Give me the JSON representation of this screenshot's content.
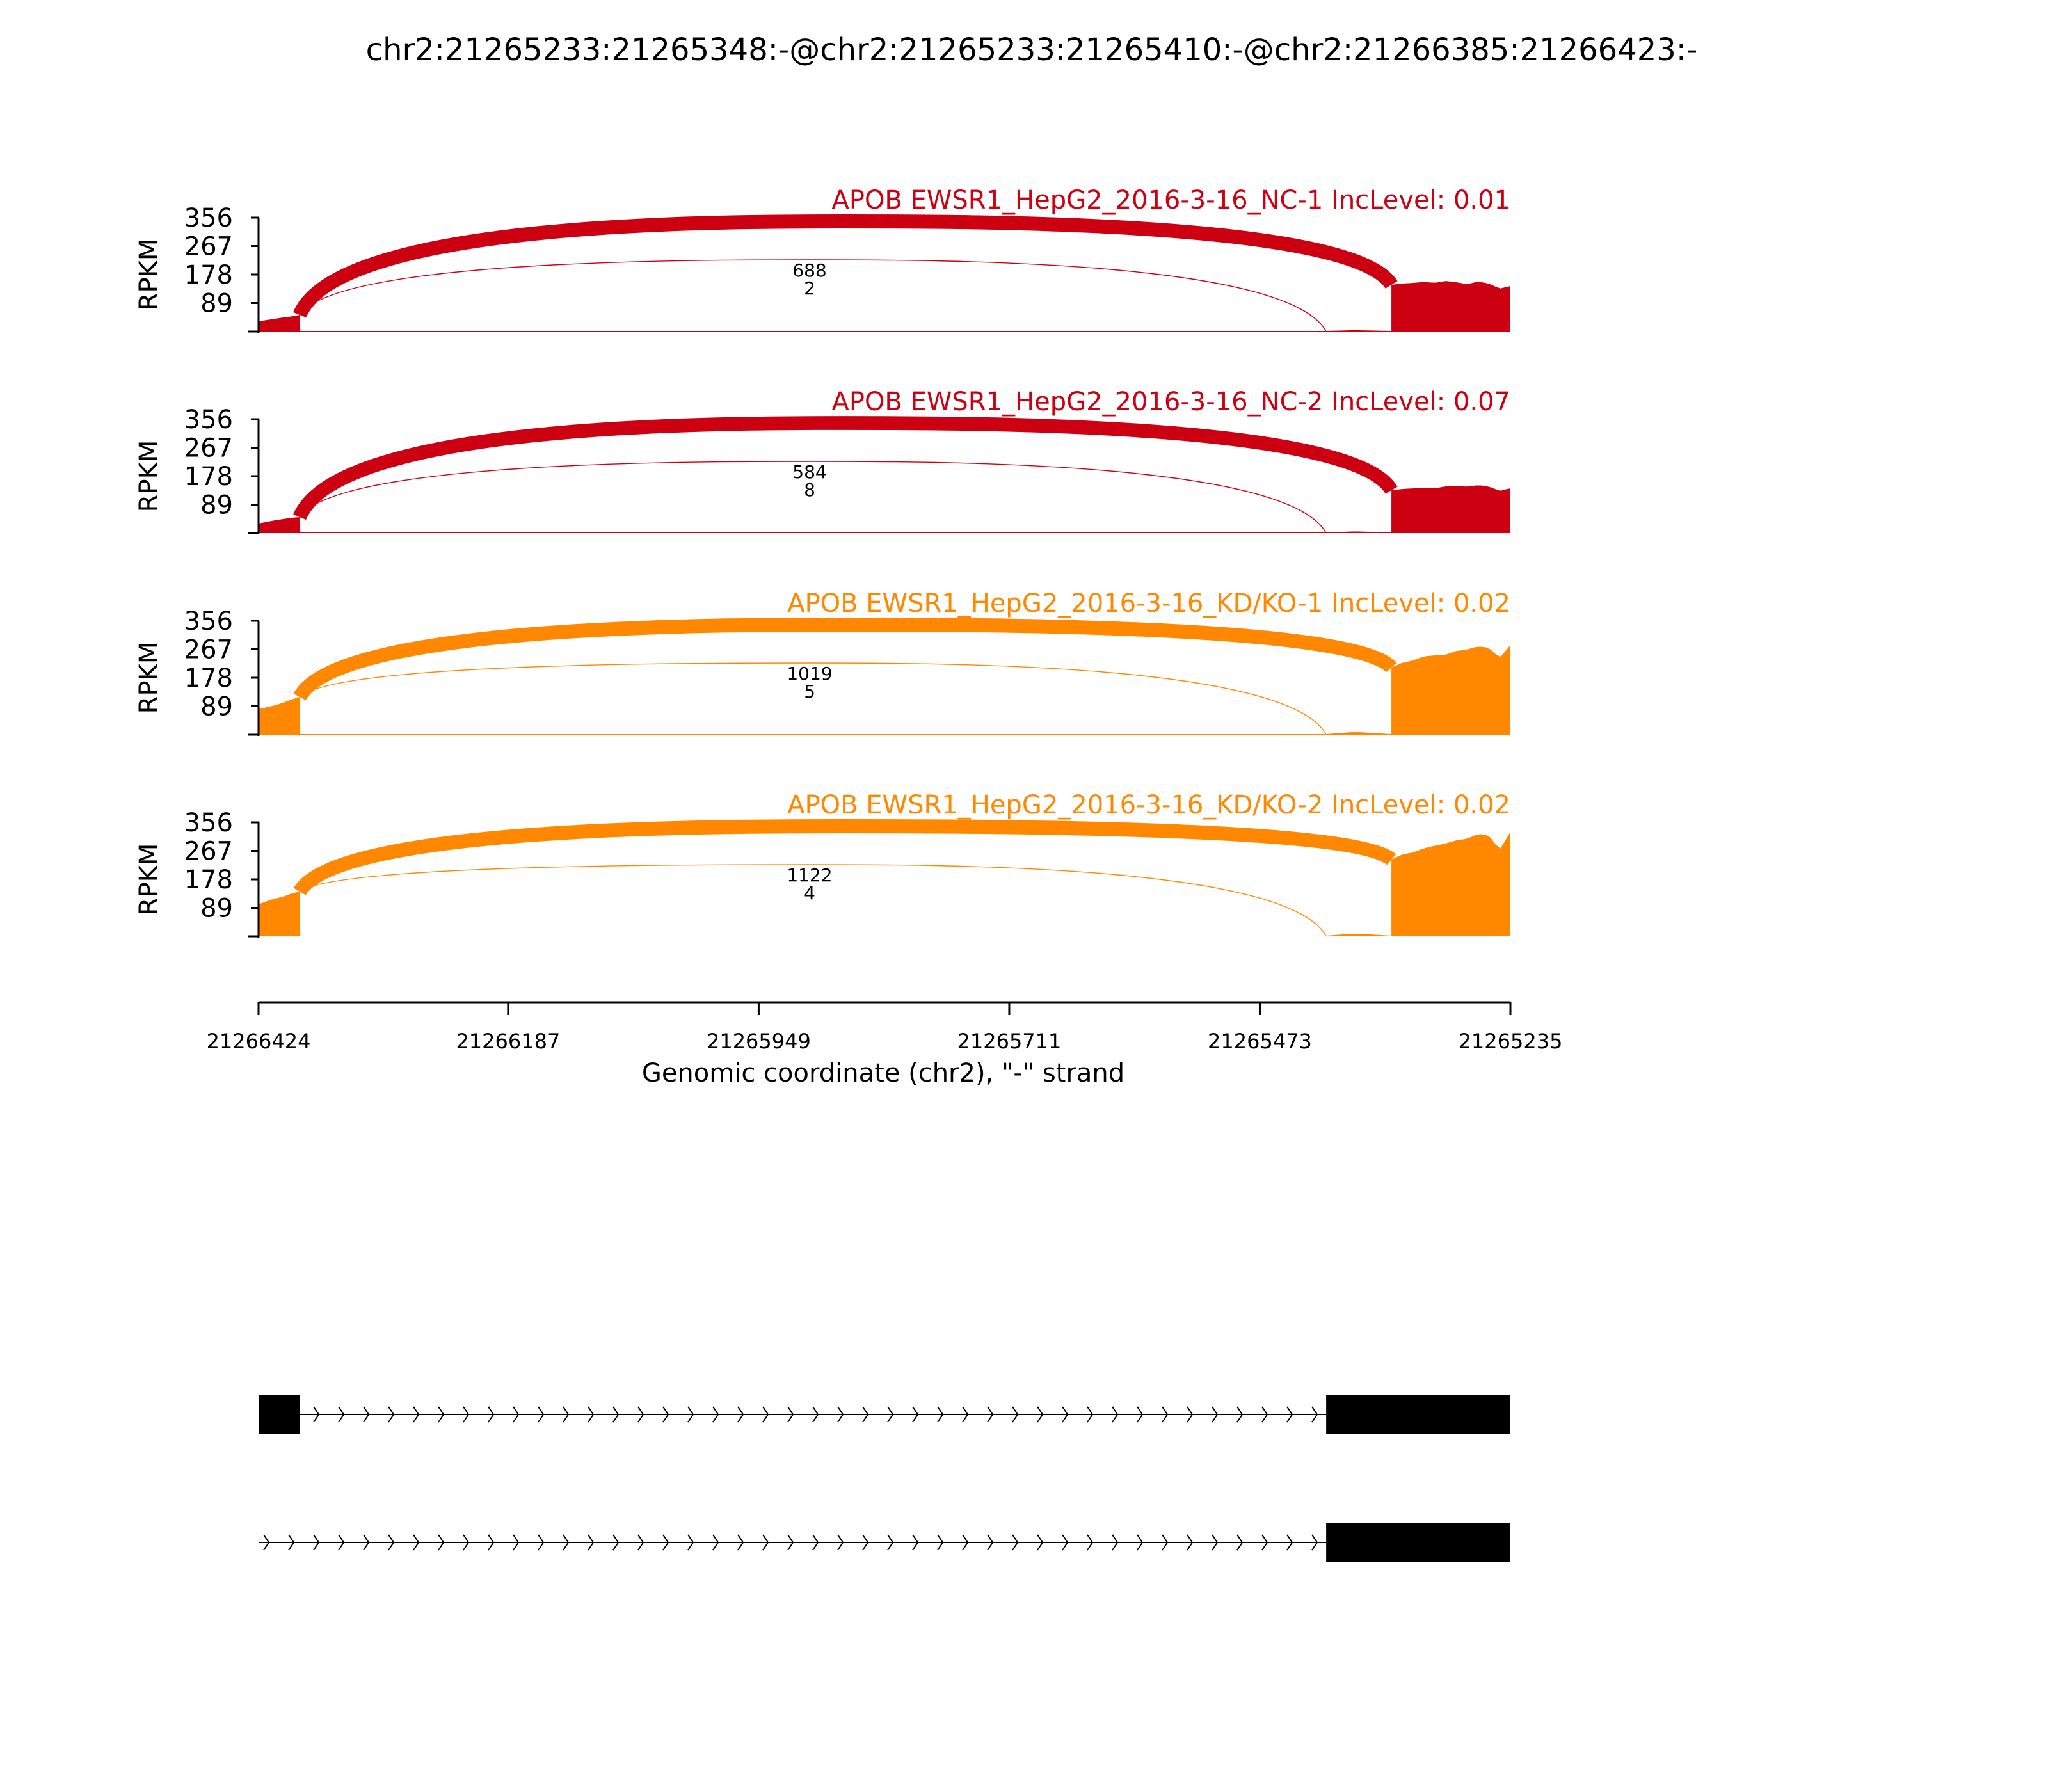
{
  "chart_data": {
    "type": "area",
    "title": "chr2:21265233:21265348:-@chr2:21265233:21265410:-@chr2:21266385:21266423:-",
    "xlabel": "Genomic coordinate (chr2), \"-\" strand",
    "ylabel": "RPKM",
    "ylim": [
      0,
      356
    ],
    "yticks": [
      89,
      178,
      267,
      356
    ],
    "xlim": [
      21266424,
      21265235
    ],
    "xticks": [
      21266424,
      21266187,
      21265949,
      21265711,
      21265473,
      21265235
    ],
    "colors": {
      "NC": "#cc0011",
      "KD": "#ff8800"
    },
    "exons": {
      "upstream": [
        21266424,
        21266385
      ],
      "skipped": [
        21265410,
        21265348
      ],
      "downstream": [
        21265348,
        21265235
      ]
    },
    "series": [
      {
        "name": "APOB EWSR1_HepG2_2016-3-16_NC-1 IncLevel: 0.01",
        "group": "NC",
        "upstream_coverage": [
          32,
          36,
          40,
          44,
          47,
          52
        ],
        "skipped_coverage": 4,
        "downstream_coverage": [
          146,
          150,
          152,
          155,
          152,
          158,
          154,
          148,
          156,
          150,
          134,
          142
        ],
        "junctions": [
          {
            "label": "688",
            "from": 21266385,
            "to": 21265348,
            "value": 688
          },
          {
            "label": "2",
            "from": 21266385,
            "to": 21265410,
            "value": 2
          }
        ]
      },
      {
        "name": "APOB EWSR1_HepG2_2016-3-16_NC-2 IncLevel: 0.07",
        "group": "NC",
        "upstream_coverage": [
          30,
          35,
          40,
          44,
          48,
          50
        ],
        "skipped_coverage": 5,
        "downstream_coverage": [
          134,
          138,
          140,
          142,
          140,
          146,
          148,
          145,
          150,
          146,
          132,
          140
        ],
        "junctions": [
          {
            "label": "584",
            "from": 21266385,
            "to": 21265348,
            "value": 584
          },
          {
            "label": "8",
            "from": 21266385,
            "to": 21265410,
            "value": 8
          }
        ]
      },
      {
        "name": "APOB EWSR1_HepG2_2016-3-16_KD/KO-1 IncLevel: 0.02",
        "group": "KD",
        "upstream_coverage": [
          80,
          86,
          92,
          100,
          110,
          118
        ],
        "skipped_coverage": 8,
        "downstream_coverage": [
          210,
          225,
          232,
          245,
          248,
          250,
          262,
          266,
          276,
          272,
          240,
          280
        ],
        "junctions": [
          {
            "label": "1019",
            "from": 21266385,
            "to": 21265348,
            "value": 1019
          },
          {
            "label": "5",
            "from": 21266385,
            "to": 21265410,
            "value": 5
          }
        ]
      },
      {
        "name": "APOB EWSR1_HepG2_2016-3-16_KD/KO-2 IncLevel: 0.02",
        "group": "KD",
        "upstream_coverage": [
          100,
          110,
          118,
          124,
          134,
          140
        ],
        "skipped_coverage": 8,
        "downstream_coverage": [
          240,
          256,
          262,
          275,
          283,
          290,
          300,
          305,
          320,
          316,
          270,
          326
        ],
        "junctions": [
          {
            "label": "1122",
            "from": 21266385,
            "to": 21265348,
            "value": 1122
          },
          {
            "label": "4",
            "from": 21266385,
            "to": 21265410,
            "value": 4
          }
        ]
      }
    ],
    "isoforms": [
      {
        "exons": [
          [
            21266424,
            21266385
          ],
          [
            21265410,
            21265235
          ]
        ]
      },
      {
        "exons": [
          [
            21265410,
            21265235
          ]
        ]
      }
    ]
  }
}
